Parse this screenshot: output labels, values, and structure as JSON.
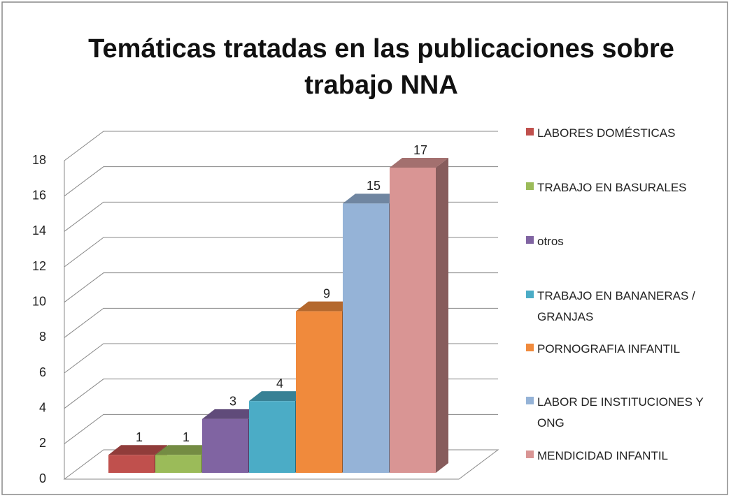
{
  "chart_data": {
    "type": "bar3d",
    "title": "Temáticas tratadas en las publicaciones sobre trabajo NNA",
    "series": [
      {
        "name": "LABORES DOMÉSTICAS",
        "color": "#c0504d",
        "values": [
          1
        ]
      },
      {
        "name": "TRABAJO EN BASURALES",
        "color": "#9bbb59",
        "values": [
          1
        ]
      },
      {
        "name": "otros",
        "color": "#8064a2",
        "values": [
          3
        ]
      },
      {
        "name": "TRABAJO EN BANANERAS / GRANJAS",
        "color": "#4bacc6",
        "values": [
          4
        ]
      },
      {
        "name": "PORNOGRAFIA INFANTIL",
        "color": "#f08a3c",
        "values": [
          9
        ]
      },
      {
        "name": "LABOR DE INSTITUCIONES Y ONG",
        "color": "#95b3d7",
        "values": [
          15
        ]
      },
      {
        "name": "MENDICIDAD INFANTIL",
        "color": "#d99594",
        "values": [
          17
        ]
      }
    ],
    "ylim": [
      0,
      18
    ],
    "yticks": [
      0,
      2,
      4,
      6,
      8,
      10,
      12,
      14,
      16,
      18
    ],
    "grid": true,
    "legend": "right"
  }
}
